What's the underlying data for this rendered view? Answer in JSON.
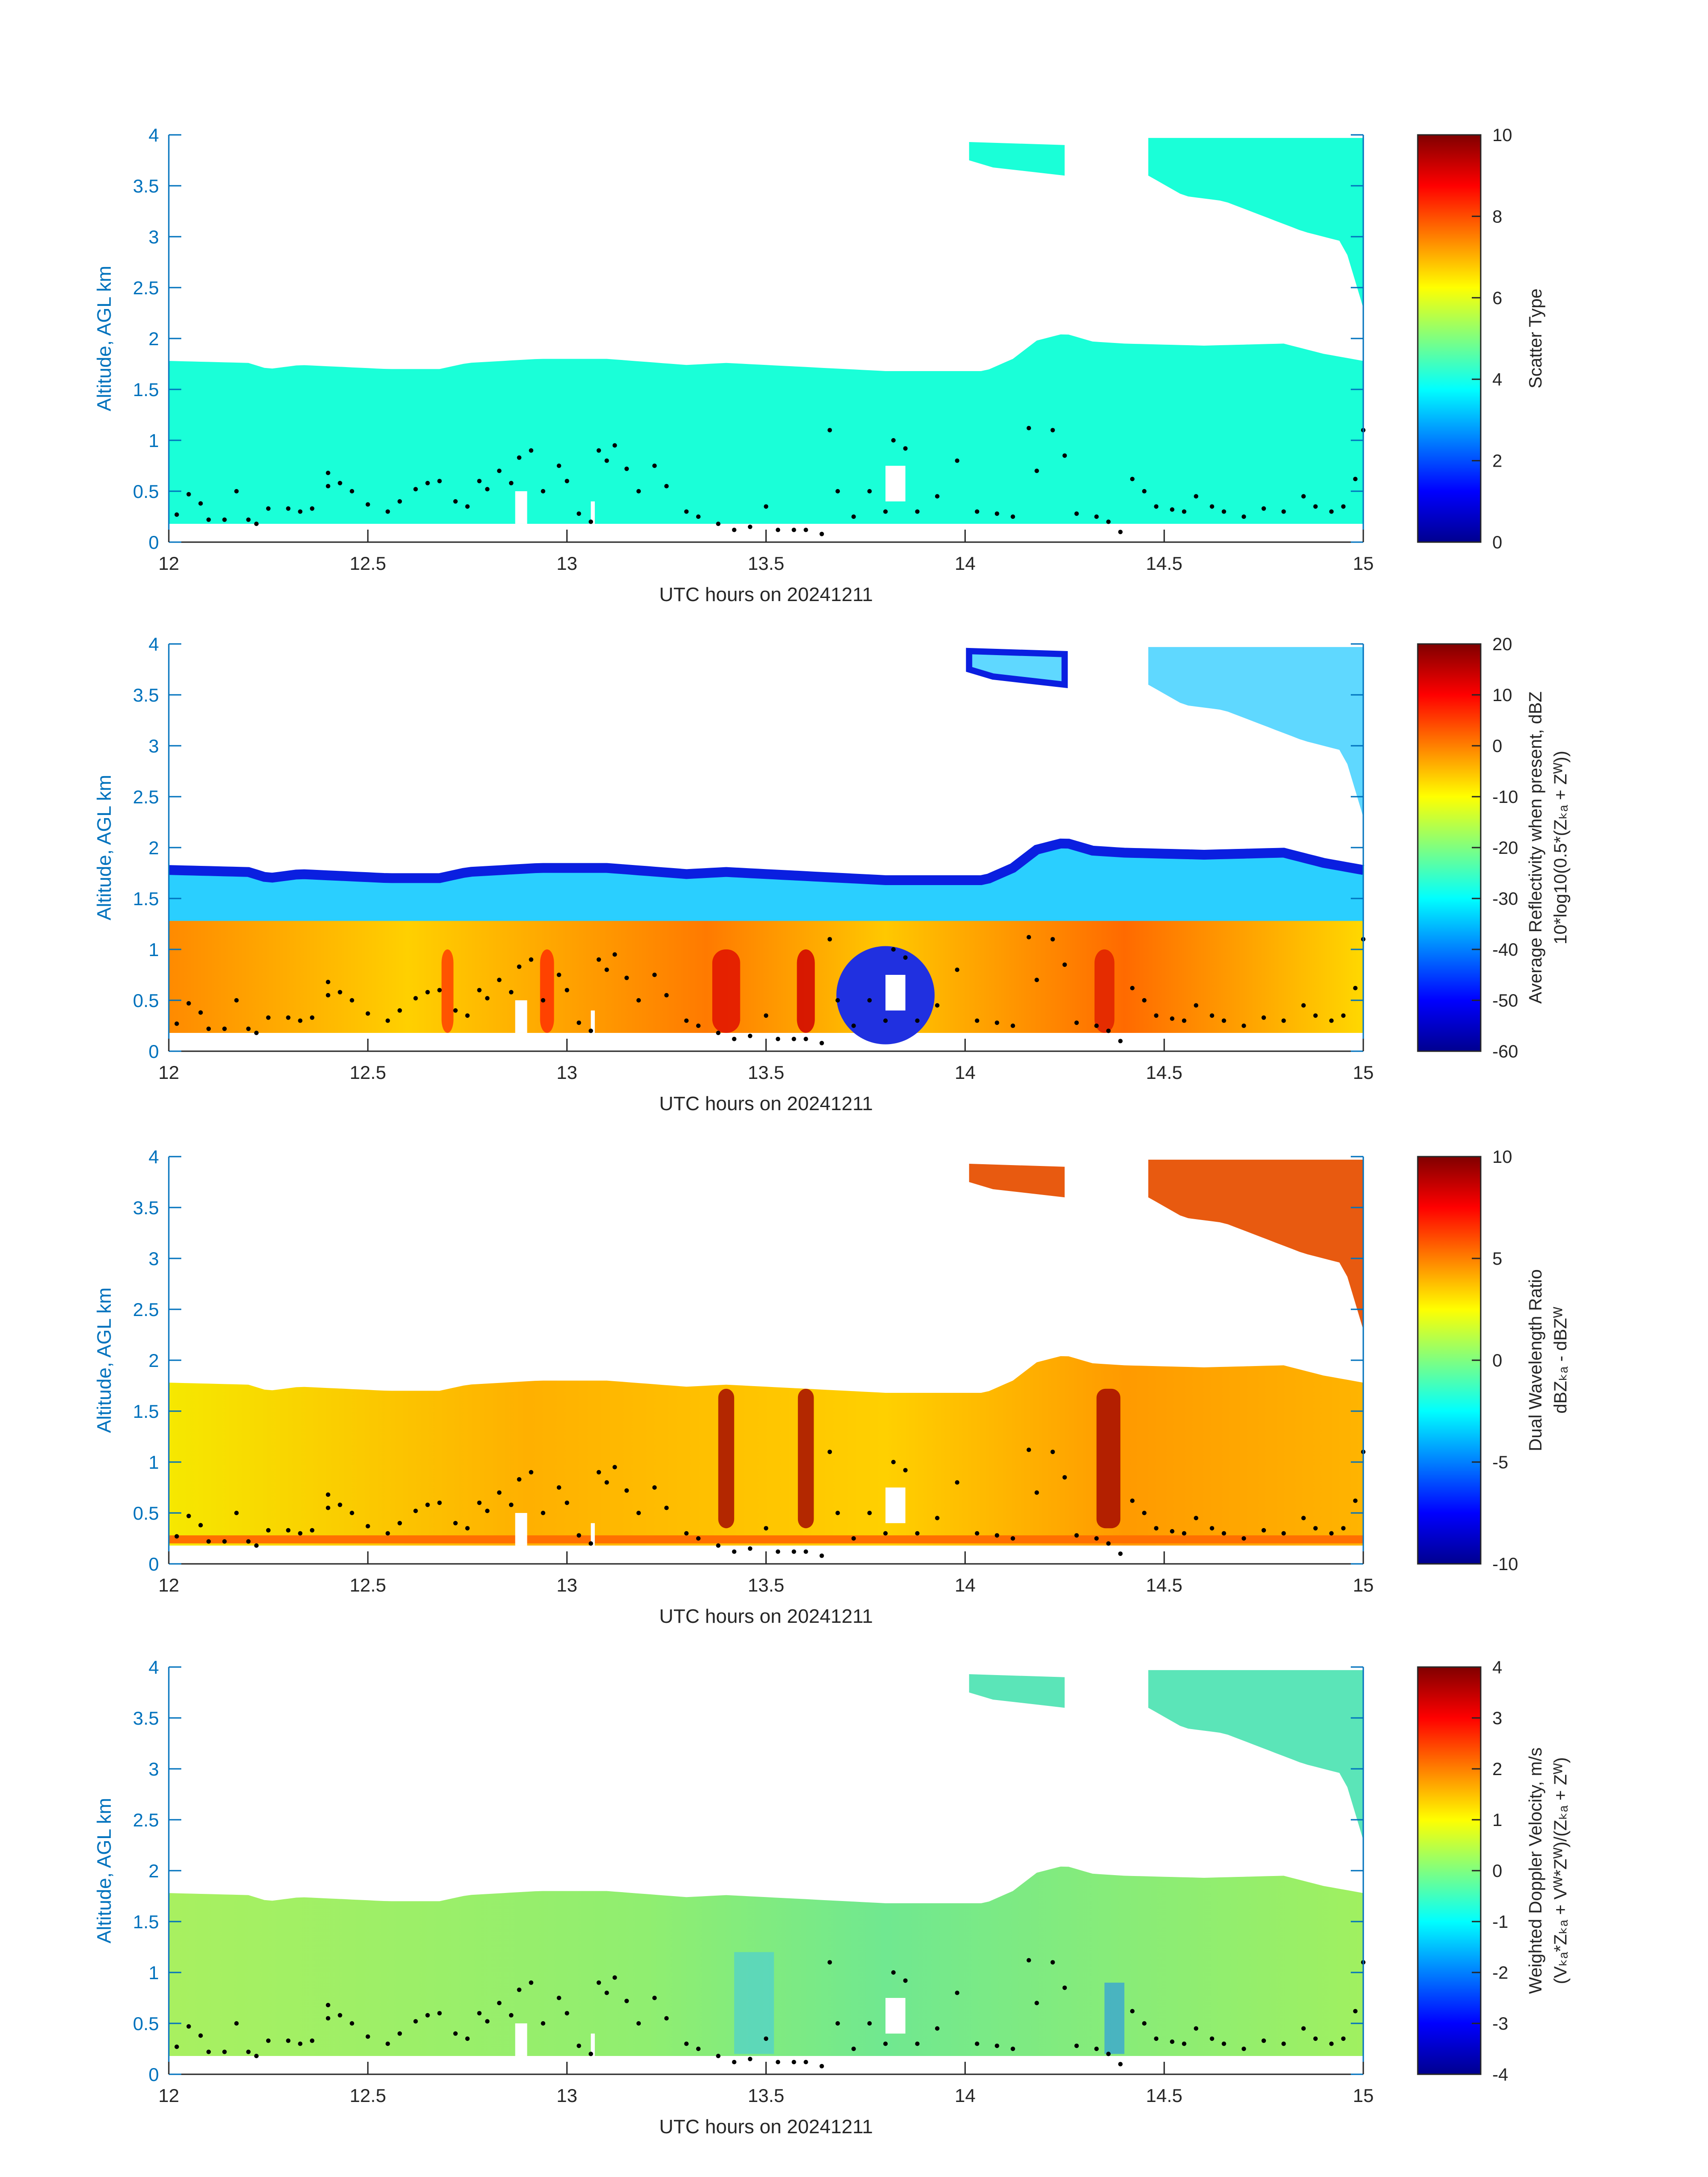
{
  "figure": {
    "background": "#ffffff"
  },
  "colors": {
    "axis_text": "#0072BD",
    "cloud_fill": "#1AFFD8",
    "dot": "#000000"
  },
  "chart_data": [
    {
      "type": "heatmap",
      "xlabel": "UTC hours on 20241211",
      "ylabel": "Altitude, AGL km",
      "xlim": [
        12,
        15
      ],
      "ylim": [
        0,
        4
      ],
      "xticks": [
        "12",
        "12.5",
        "13",
        "13.5",
        "14",
        "14.5",
        "15"
      ],
      "yticks": [
        "0",
        "0.5",
        "1",
        "1.5",
        "2",
        "2.5",
        "3",
        "3.5",
        "4"
      ],
      "colorbar": {
        "label_lines": [
          "Scatter Type"
        ],
        "range": [
          0,
          10
        ],
        "ticks": [
          "0",
          "2",
          "4",
          "6",
          "8",
          "10"
        ]
      },
      "field": "scatter_type",
      "value_estimate": 4
    },
    {
      "type": "heatmap",
      "xlabel": "UTC hours on 20241211",
      "ylabel": "Altitude, AGL km",
      "xlim": [
        12,
        15
      ],
      "ylim": [
        0,
        4
      ],
      "xticks": [
        "12",
        "12.5",
        "13",
        "13.5",
        "14",
        "14.5",
        "15"
      ],
      "yticks": [
        "0",
        "0.5",
        "1",
        "1.5",
        "2",
        "2.5",
        "3",
        "3.5",
        "4"
      ],
      "colorbar": {
        "label_lines": [
          "Average Reflectivity when present, dBZ",
          "10*log10(0.5*(Zₖₐ + Zᵂ))"
        ],
        "range": [
          -60,
          20
        ],
        "ticks": [
          "-60",
          "-50",
          "-40",
          "-30",
          "-20",
          "-10",
          "0",
          "10",
          "20"
        ]
      },
      "field": "reflectivity_dbz"
    },
    {
      "type": "heatmap",
      "xlabel": "UTC hours on 20241211",
      "ylabel": "Altitude, AGL km",
      "xlim": [
        12,
        15
      ],
      "ylim": [
        0,
        4
      ],
      "xticks": [
        "12",
        "12.5",
        "13",
        "13.5",
        "14",
        "14.5",
        "15"
      ],
      "yticks": [
        "0",
        "0.5",
        "1",
        "1.5",
        "2",
        "2.5",
        "3",
        "3.5",
        "4"
      ],
      "colorbar": {
        "label_lines": [
          "Dual Wavelength Ratio",
          "dBZₖₐ - dBZᵂ"
        ],
        "range": [
          -10,
          10
        ],
        "ticks": [
          "-10",
          "-5",
          "0",
          "5",
          "10"
        ]
      },
      "field": "dwr_db"
    },
    {
      "type": "heatmap",
      "xlabel": "UTC hours on 20241211",
      "ylabel": "Altitude, AGL km",
      "xlim": [
        12,
        15
      ],
      "ylim": [
        0,
        4
      ],
      "xticks": [
        "12",
        "12.5",
        "13",
        "13.5",
        "14",
        "14.5",
        "15"
      ],
      "yticks": [
        "0",
        "0.5",
        "1",
        "1.5",
        "2",
        "2.5",
        "3",
        "3.5",
        "4"
      ],
      "colorbar": {
        "label_lines": [
          "Weighted Doppler Velocity, m/s",
          "(Vₖₐ*Zₖₐ + Vᵂ*Zᵂ)/(Zₖₐ + Zᵂ)"
        ],
        "range": [
          -4,
          4
        ],
        "ticks": [
          "-4",
          "-3",
          "-2",
          "-1",
          "0",
          "1",
          "2",
          "3",
          "4"
        ]
      },
      "field": "doppler_velocity_ms"
    }
  ],
  "cloud_layers": {
    "low_cloud": {
      "base_km": 0.18,
      "top_km": [
        [
          12.0,
          1.78
        ],
        [
          12.2,
          1.76
        ],
        [
          12.25,
          1.7
        ],
        [
          12.33,
          1.74
        ],
        [
          12.55,
          1.7
        ],
        [
          12.68,
          1.7
        ],
        [
          12.75,
          1.76
        ],
        [
          12.93,
          1.8
        ],
        [
          13.1,
          1.8
        ],
        [
          13.3,
          1.74
        ],
        [
          13.4,
          1.76
        ],
        [
          13.6,
          1.72
        ],
        [
          13.8,
          1.68
        ],
        [
          14.05,
          1.68
        ],
        [
          14.12,
          1.8
        ],
        [
          14.18,
          1.98
        ],
        [
          14.25,
          2.05
        ],
        [
          14.32,
          1.97
        ],
        [
          14.4,
          1.95
        ],
        [
          14.6,
          1.93
        ],
        [
          14.8,
          1.95
        ],
        [
          14.9,
          1.85
        ],
        [
          15.0,
          1.78
        ]
      ],
      "gaps": [
        [
          12.87,
          12.9,
          0.18,
          0.5
        ],
        [
          13.06,
          13.07,
          0.18,
          0.4
        ],
        [
          13.8,
          13.85,
          0.4,
          0.75
        ]
      ]
    },
    "upper_cloud_1": {
      "x": [
        14.01,
        14.25
      ],
      "top_km": 3.93,
      "base_km": 3.6
    },
    "upper_cloud_2": {
      "x": [
        14.46,
        15.0
      ],
      "top_km": 3.97,
      "base_km": [
        [
          14.46,
          3.6
        ],
        [
          14.55,
          3.4
        ],
        [
          14.65,
          3.35
        ],
        [
          14.75,
          3.2
        ],
        [
          14.85,
          3.05
        ],
        [
          14.95,
          2.95
        ],
        [
          15.0,
          2.3
        ]
      ]
    }
  },
  "dots": [
    [
      12.02,
      0.27
    ],
    [
      12.05,
      0.47
    ],
    [
      12.08,
      0.38
    ],
    [
      12.1,
      0.22
    ],
    [
      12.14,
      0.22
    ],
    [
      12.17,
      0.5
    ],
    [
      12.2,
      0.22
    ],
    [
      12.22,
      0.18
    ],
    [
      12.25,
      0.33
    ],
    [
      12.3,
      0.33
    ],
    [
      12.33,
      0.3
    ],
    [
      12.36,
      0.33
    ],
    [
      12.4,
      0.55
    ],
    [
      12.4,
      0.68
    ],
    [
      12.43,
      0.58
    ],
    [
      12.46,
      0.5
    ],
    [
      12.5,
      0.37
    ],
    [
      12.55,
      0.3
    ],
    [
      12.58,
      0.4
    ],
    [
      12.62,
      0.52
    ],
    [
      12.65,
      0.58
    ],
    [
      12.68,
      0.6
    ],
    [
      12.72,
      0.4
    ],
    [
      12.75,
      0.35
    ],
    [
      12.78,
      0.6
    ],
    [
      12.8,
      0.52
    ],
    [
      12.83,
      0.7
    ],
    [
      12.86,
      0.58
    ],
    [
      12.88,
      0.83
    ],
    [
      12.91,
      0.9
    ],
    [
      12.94,
      0.5
    ],
    [
      12.98,
      0.75
    ],
    [
      13.0,
      0.6
    ],
    [
      13.03,
      0.28
    ],
    [
      13.06,
      0.2
    ],
    [
      13.08,
      0.9
    ],
    [
      13.1,
      0.8
    ],
    [
      13.12,
      0.95
    ],
    [
      13.15,
      0.72
    ],
    [
      13.18,
      0.5
    ],
    [
      13.22,
      0.75
    ],
    [
      13.25,
      0.55
    ],
    [
      13.3,
      0.3
    ],
    [
      13.33,
      0.25
    ],
    [
      13.38,
      0.18
    ],
    [
      13.42,
      0.12
    ],
    [
      13.46,
      0.15
    ],
    [
      13.5,
      0.35
    ],
    [
      13.53,
      0.12
    ],
    [
      13.57,
      0.12
    ],
    [
      13.6,
      0.12
    ],
    [
      13.64,
      0.08
    ],
    [
      13.66,
      1.1
    ],
    [
      13.68,
      0.5
    ],
    [
      13.72,
      0.25
    ],
    [
      13.76,
      0.5
    ],
    [
      13.8,
      0.3
    ],
    [
      13.82,
      1.0
    ],
    [
      13.85,
      0.92
    ],
    [
      13.88,
      0.3
    ],
    [
      13.93,
      0.45
    ],
    [
      13.98,
      0.8
    ],
    [
      14.03,
      0.3
    ],
    [
      14.08,
      0.28
    ],
    [
      14.12,
      0.25
    ],
    [
      14.16,
      1.12
    ],
    [
      14.18,
      0.7
    ],
    [
      14.22,
      1.1
    ],
    [
      14.25,
      0.85
    ],
    [
      14.28,
      0.28
    ],
    [
      14.33,
      0.25
    ],
    [
      14.36,
      0.2
    ],
    [
      14.39,
      0.1
    ],
    [
      14.42,
      0.62
    ],
    [
      14.45,
      0.5
    ],
    [
      14.48,
      0.35
    ],
    [
      14.52,
      0.32
    ],
    [
      14.55,
      0.3
    ],
    [
      14.58,
      0.45
    ],
    [
      14.62,
      0.35
    ],
    [
      14.65,
      0.3
    ],
    [
      14.7,
      0.25
    ],
    [
      14.75,
      0.33
    ],
    [
      14.8,
      0.3
    ],
    [
      14.85,
      0.45
    ],
    [
      14.88,
      0.35
    ],
    [
      14.92,
      0.3
    ],
    [
      14.95,
      0.35
    ],
    [
      14.98,
      0.62
    ],
    [
      15.0,
      1.1
    ]
  ]
}
